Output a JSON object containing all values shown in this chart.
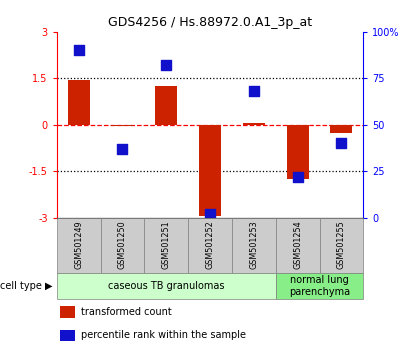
{
  "title": "GDS4256 / Hs.88972.0.A1_3p_at",
  "samples": [
    "GSM501249",
    "GSM501250",
    "GSM501251",
    "GSM501252",
    "GSM501253",
    "GSM501254",
    "GSM501255"
  ],
  "transformed_count": [
    1.45,
    -0.05,
    1.25,
    -2.95,
    0.07,
    -1.75,
    -0.25
  ],
  "percentile_rank": [
    90,
    37,
    82,
    2,
    68,
    22,
    40
  ],
  "bar_color": "#cc2200",
  "dot_color": "#1111cc",
  "ylim_left": [
    -3,
    3
  ],
  "ylim_right": [
    0,
    100
  ],
  "yticks_left": [
    -3,
    -1.5,
    0,
    1.5,
    3
  ],
  "yticks_right": [
    0,
    25,
    50,
    75,
    100
  ],
  "ytick_labels_left": [
    "-3",
    "-1.5",
    "0",
    "1.5",
    "3"
  ],
  "ytick_labels_right": [
    "0",
    "25",
    "50",
    "75",
    "100%"
  ],
  "hline_dotted_vals": [
    -1.5,
    1.5
  ],
  "hline_dashed_val": 0,
  "cell_type_groups": [
    {
      "label": "caseous TB granulomas",
      "indices": [
        0,
        1,
        2,
        3,
        4
      ],
      "color": "#ccffcc"
    },
    {
      "label": "normal lung\nparenchyma",
      "indices": [
        5,
        6
      ],
      "color": "#88ee88"
    }
  ],
  "cell_type_label": "cell type",
  "legend_items": [
    {
      "color": "#cc2200",
      "label": "transformed count"
    },
    {
      "color": "#1111cc",
      "label": "percentile rank within the sample"
    }
  ],
  "bar_width": 0.5,
  "dot_size": 45,
  "sample_box_color": "#cccccc",
  "plot_bg": "#ffffff"
}
